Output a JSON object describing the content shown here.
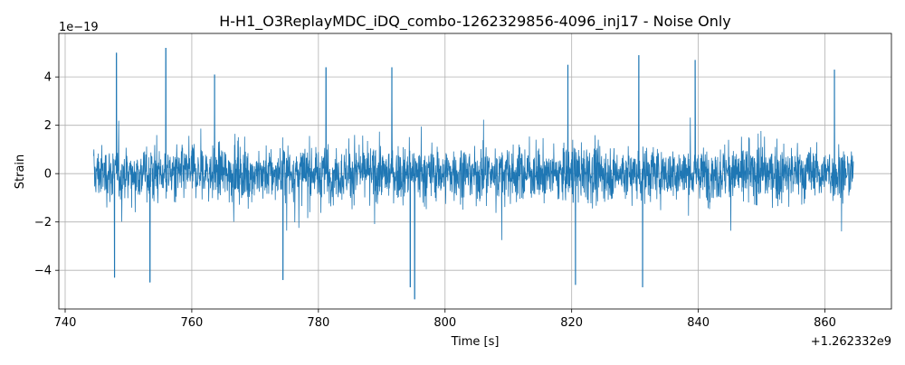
{
  "chart_data": {
    "type": "line",
    "title": "H-H1_O3ReplayMDC_iDQ_combo-1262329856-4096_inj17 - Noise Only",
    "xlabel": "Time [s]",
    "ylabel": "Strain",
    "x_offset_label": "+1.262332e9",
    "y_scale_label": "1e−19",
    "xlim": [
      739,
      870.5
    ],
    "ylim": [
      -5.6,
      5.8
    ],
    "x_ticks": [
      740,
      760,
      780,
      800,
      820,
      840,
      860
    ],
    "y_ticks": [
      -4,
      -2,
      0,
      2,
      4
    ],
    "x_tick_labels": [
      "740",
      "760",
      "780",
      "800",
      "820",
      "840",
      "860"
    ],
    "y_tick_labels": [
      "−4",
      "−2",
      "0",
      "2",
      "4"
    ],
    "grid": true,
    "series": [
      {
        "color": "#1f77b4",
        "x_start": 744.5,
        "x_end": 864.5,
        "typical_envelope": [
          -2.0,
          2.0
        ],
        "peaks": [
          {
            "x": 748.1,
            "y": 5.0
          },
          {
            "x": 755.9,
            "y": 5.2
          },
          {
            "x": 763.6,
            "y": 4.1
          },
          {
            "x": 781.2,
            "y": 4.4
          },
          {
            "x": 791.6,
            "y": 4.4
          },
          {
            "x": 830.6,
            "y": 4.9
          },
          {
            "x": 819.4,
            "y": 4.5
          },
          {
            "x": 839.5,
            "y": 4.7
          },
          {
            "x": 861.5,
            "y": 4.3
          },
          {
            "x": 795.2,
            "y": -5.2
          },
          {
            "x": 794.5,
            "y": -4.7
          },
          {
            "x": 753.4,
            "y": -4.5
          },
          {
            "x": 747.8,
            "y": -4.3
          },
          {
            "x": 831.2,
            "y": -4.7
          },
          {
            "x": 820.6,
            "y": -4.6
          },
          {
            "x": 774.4,
            "y": -4.4
          }
        ]
      }
    ]
  }
}
